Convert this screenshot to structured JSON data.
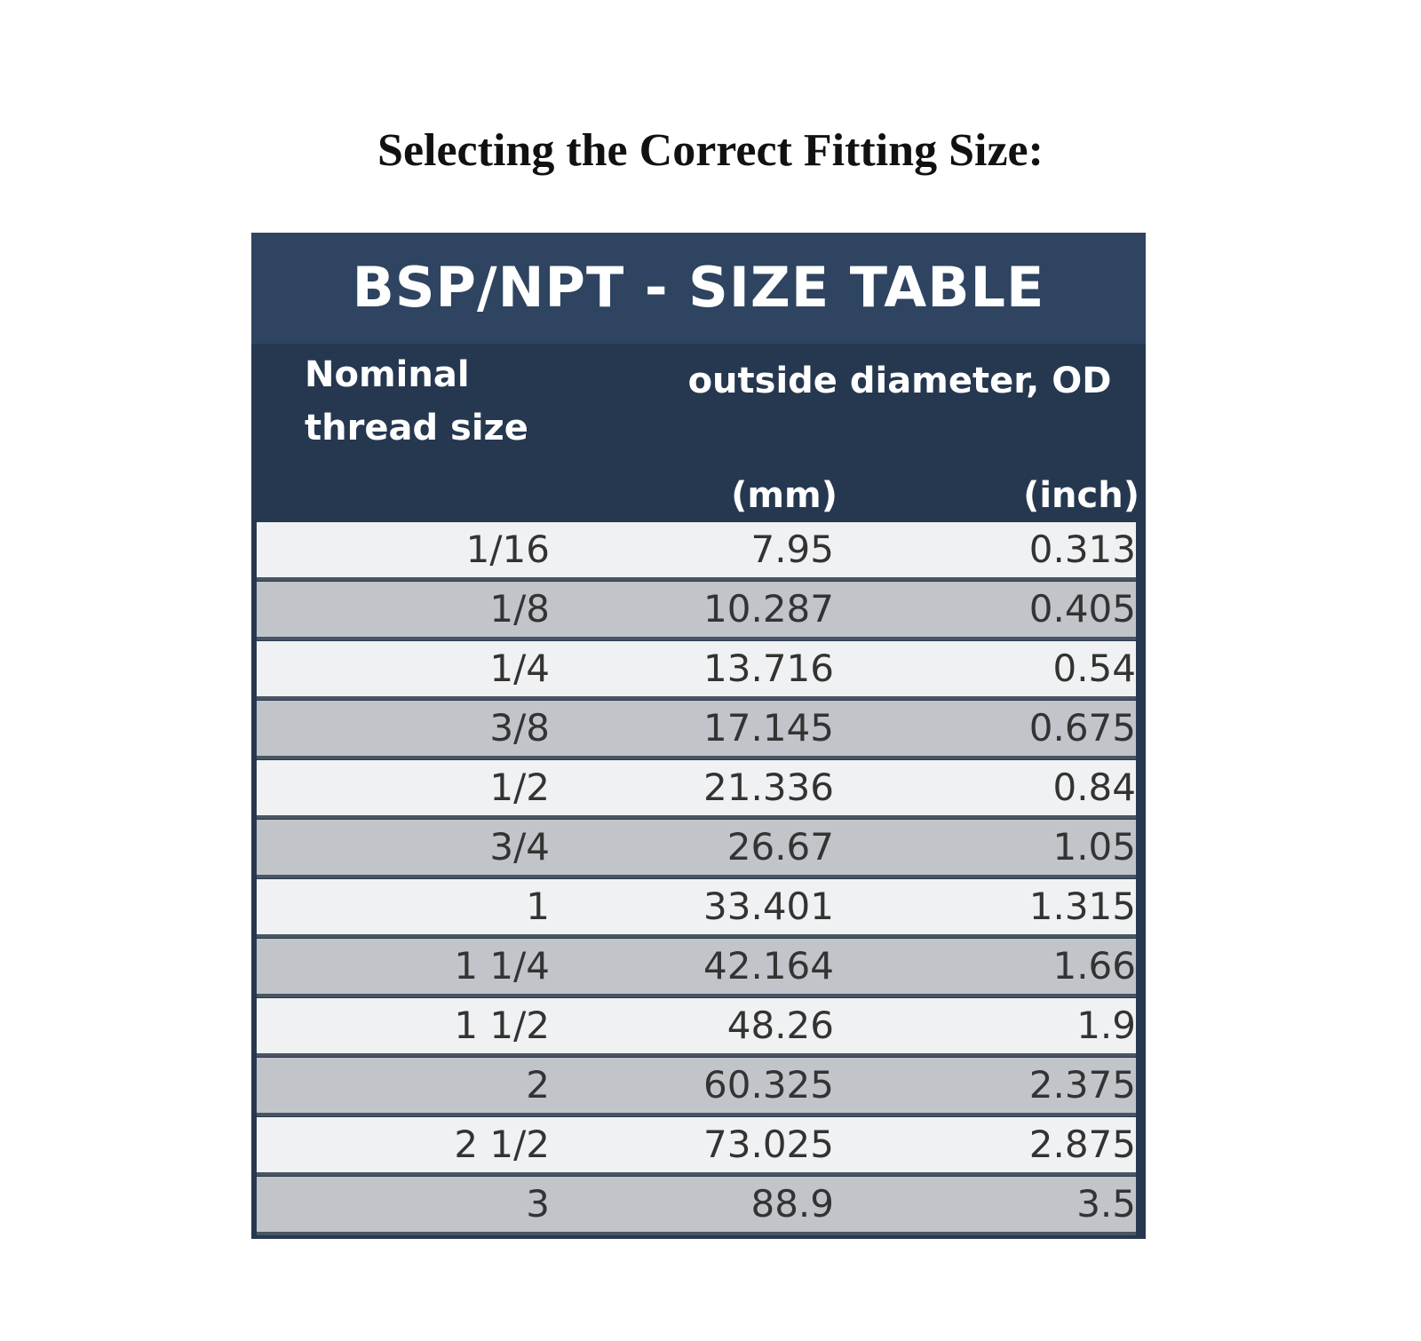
{
  "header": {
    "title": "Selecting the Correct Fitting Size:"
  },
  "table": {
    "title": "BSP/NPT - SIZE TABLE",
    "column_headers": {
      "nominal": "Nominal thread size",
      "od": "outside diameter, OD",
      "mm": "(mm)",
      "inch": "(inch)"
    },
    "rows": [
      [
        "1/16",
        7.95,
        0.313
      ],
      [
        "1/8",
        10.287,
        0.405
      ],
      [
        "1/4",
        13.716,
        0.54
      ],
      [
        "3/8",
        17.145,
        0.675
      ],
      [
        "1/2",
        21.336,
        0.84
      ],
      [
        "3/4",
        26.67,
        1.05
      ],
      [
        "1",
        33.401,
        1.315
      ],
      [
        "1 1/4",
        42.164,
        1.66
      ],
      [
        "1 1/2",
        48.26,
        1.9
      ],
      [
        "2",
        60.325,
        2.375
      ],
      [
        "2 1/2",
        73.025,
        2.875
      ],
      [
        "3",
        88.9,
        3.5
      ]
    ]
  }
}
